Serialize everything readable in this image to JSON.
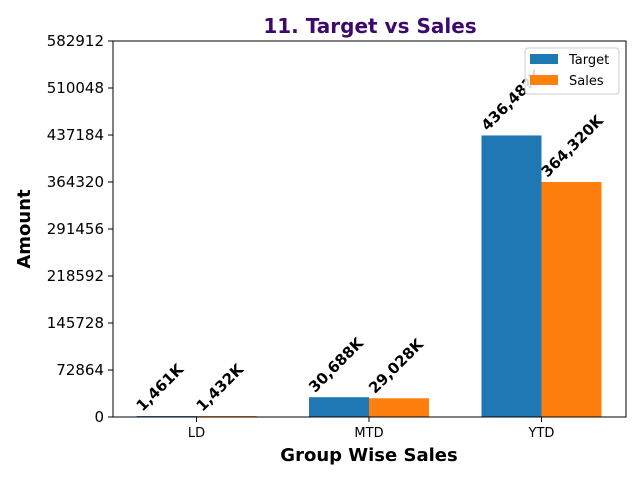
{
  "chart_data": {
    "type": "bar",
    "title": "11. Target vs Sales",
    "xlabel": "Group Wise Sales",
    "ylabel": "Amount",
    "categories": [
      "LD",
      "MTD",
      "YTD"
    ],
    "series": [
      {
        "name": "Target",
        "values": [
          1461,
          30688,
          436487
        ],
        "labels": [
          "1,461K",
          "30,688K",
          "436,48?K"
        ]
      },
      {
        "name": "Sales",
        "values": [
          1432,
          29028,
          364320
        ],
        "labels": [
          "1,432K",
          "29,028K",
          "364,320K"
        ]
      }
    ],
    "ylim": [
      0,
      582912
    ],
    "yticks": [
      "0",
      "72864",
      "145728",
      "218592",
      "291456",
      "364320",
      "437184",
      "510048",
      "582912"
    ],
    "ytick_values": [
      0,
      72864,
      145728,
      218592,
      291456,
      364320,
      437184,
      510048,
      582912
    ],
    "legend_position": "top-right",
    "grid": false
  },
  "colors": {
    "title": "#3d0a6b",
    "target": "#1f77b4",
    "sales": "#ff7f0e"
  }
}
